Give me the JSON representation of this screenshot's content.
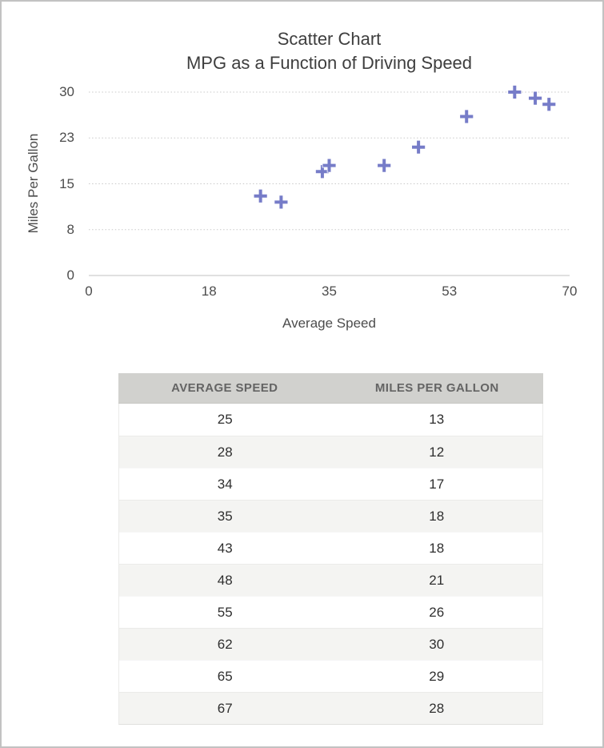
{
  "colors": {
    "frame_border": "#c2c2c2",
    "marker": "#767cc8",
    "gridline": "#c9c9c9",
    "axis_line": "#c0c0c0",
    "table_header_bg": "#d1d1ce",
    "table_alt_row_bg": "#f4f4f2"
  },
  "chart_data": {
    "type": "scatter",
    "title": "Scatter Chart",
    "subtitle": "MPG as a Function of Driving Speed",
    "xlabel": "Average Speed",
    "ylabel": "Miles Per Gallon",
    "xlim": [
      0,
      70
    ],
    "ylim": [
      0,
      30
    ],
    "x_ticks": {
      "values": [
        0,
        17.5,
        35,
        52.5,
        70
      ],
      "labels": [
        "0",
        "18",
        "35",
        "53",
        "70"
      ]
    },
    "y_ticks": {
      "values": [
        0,
        7.5,
        15,
        22.5,
        30
      ],
      "labels": [
        "0",
        "8",
        "15",
        "23",
        "30"
      ]
    },
    "grid": "horizontal-dotted",
    "legend": "none",
    "series": [
      {
        "name": "Miles Per Gallon",
        "marker": "plus",
        "color": "#767cc8",
        "points": [
          [
            25,
            13
          ],
          [
            28,
            12
          ],
          [
            34,
            17
          ],
          [
            35,
            18
          ],
          [
            43,
            18
          ],
          [
            48,
            21
          ],
          [
            55,
            26
          ],
          [
            62,
            30
          ],
          [
            65,
            29
          ],
          [
            67,
            28
          ]
        ]
      }
    ]
  },
  "table": {
    "columns": [
      "AVERAGE SPEED",
      "MILES PER GALLON"
    ],
    "rows": [
      [
        "25",
        "13"
      ],
      [
        "28",
        "12"
      ],
      [
        "34",
        "17"
      ],
      [
        "35",
        "18"
      ],
      [
        "43",
        "18"
      ],
      [
        "48",
        "21"
      ],
      [
        "55",
        "26"
      ],
      [
        "62",
        "30"
      ],
      [
        "65",
        "29"
      ],
      [
        "67",
        "28"
      ]
    ]
  }
}
